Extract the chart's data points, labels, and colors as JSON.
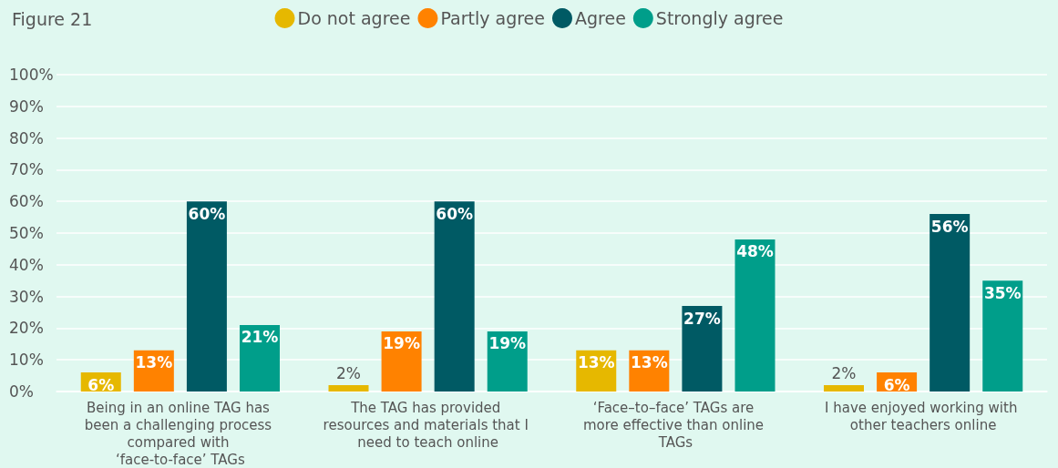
{
  "chart_data": {
    "type": "bar",
    "title": "Figure 21",
    "categories": [
      "Being in an online TAG has been a challenging process compared with ‘face-to-face’ TAGs",
      "The TAG has provided resources and materials that I need to teach online",
      "‘Face–to–face’ TAGs are more effective than online TAGs",
      "I have enjoyed working with other teachers online"
    ],
    "series": [
      {
        "name": "Do not agree",
        "color": "#e6b800",
        "values": [
          6,
          2,
          13,
          2
        ],
        "value_labels": [
          "6%",
          "2%",
          "13%",
          "2%"
        ]
      },
      {
        "name": "Partly agree",
        "color": "#ff8200",
        "values": [
          13,
          19,
          13,
          6
        ],
        "value_labels": [
          "13%",
          "19%",
          "13%",
          "6%"
        ]
      },
      {
        "name": "Agree",
        "color": "#005a64",
        "values": [
          60,
          60,
          27,
          56
        ],
        "value_labels": [
          "60%",
          "60%",
          "27%",
          "56%"
        ]
      },
      {
        "name": "Strongly agree",
        "color": "#009e8a",
        "values": [
          21,
          19,
          48,
          35
        ],
        "value_labels": [
          "21%",
          "19%",
          "48%",
          "35%"
        ]
      }
    ],
    "ylim": [
      0,
      100
    ],
    "yticks": [
      {
        "value": 0,
        "label": "0%"
      },
      {
        "value": 10,
        "label": "10%"
      },
      {
        "value": 20,
        "label": "20%"
      },
      {
        "value": 30,
        "label": "30%"
      },
      {
        "value": 40,
        "label": "40%"
      },
      {
        "value": 50,
        "label": "50%"
      },
      {
        "value": 60,
        "label": "60%"
      },
      {
        "value": 70,
        "label": "70%"
      },
      {
        "value": 80,
        "label": "80%"
      },
      {
        "value": 90,
        "label": "90%"
      },
      {
        "value": 100,
        "label": "100%"
      }
    ],
    "grid": "y",
    "legend": "top"
  }
}
